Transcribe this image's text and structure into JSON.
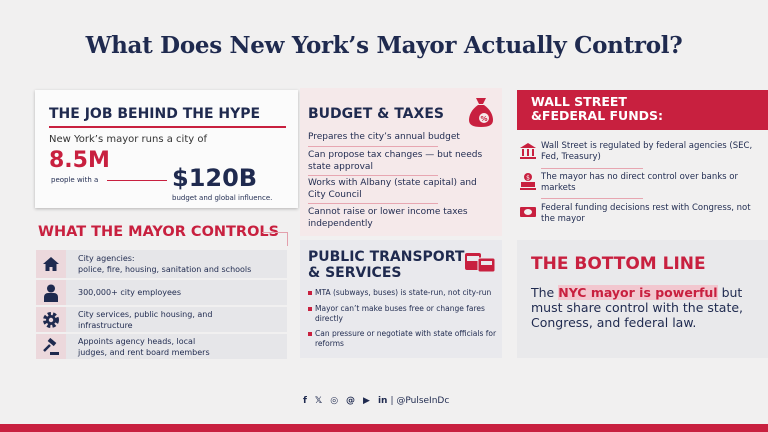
{
  "title": "What Does New York’s Mayor Actually Control?",
  "job": {
    "heading": "THE JOB BEHIND THE HYPE",
    "intro": "New York’s mayor runs a city of",
    "population": "8.5M",
    "population_caption": "people with a",
    "budget": "$120B",
    "budget_caption": "budget and global influence."
  },
  "controls": {
    "heading": "WHAT THE MAYOR CONTROLS",
    "items": [
      {
        "icon": "house-icon",
        "text_line1": "City agencies:",
        "text_line2": "police, fire, housing, sanitation and schools"
      },
      {
        "icon": "employee-icon",
        "text_line1": "300,000+ city employees",
        "text_line2": ""
      },
      {
        "icon": "gear-icon",
        "text_line1": "City services, public housing, and",
        "text_line2": "infrastructure"
      },
      {
        "icon": "gavel-icon",
        "text_line1": "Appoints agency heads, local",
        "text_line2": "judges, and rent board members"
      }
    ]
  },
  "budget": {
    "heading": "BUDGET & TAXES",
    "icon": "money-bag-percent-icon",
    "items": [
      "Prepares the city’s annual budget",
      "Can propose tax changes — but needs state approval",
      "Works with Albany (state capital) and City Council",
      "Cannot raise or lower income taxes independently"
    ]
  },
  "transport": {
    "heading_line1": "PUBLIC TRANSPORT",
    "heading_line2": "& SERVICES",
    "icon": "bus-icon",
    "items": [
      "MTA (subways, buses) is state-run, not city-run",
      "Mayor can’t make buses free or change fares directly",
      "Can pressure or negotiate with state officials for reforms"
    ]
  },
  "wallstreet": {
    "heading_line1": "WALL STREET",
    "heading_line2": "&FEDERAL FUNDS:",
    "items": [
      {
        "icon": "bank-icon",
        "text": "Wall Street is regulated by federal agencies (SEC, Fed, Treasury)"
      },
      {
        "icon": "bank-dollar-icon",
        "text": "The mayor has no direct control over banks or markets"
      },
      {
        "icon": "cash-icon",
        "text": "Federal funding decisions rest with Congress, not the mayor"
      }
    ]
  },
  "bottom": {
    "heading": "THE BOTTOM LINE",
    "pre": "The ",
    "highlight": "NYC mayor is powerful",
    "post": " but must share control with the state, Congress, and federal law."
  },
  "footer": {
    "icons": [
      "facebook-icon",
      "x-icon",
      "instagram-icon",
      "threads-icon",
      "youtube-icon",
      "linkedin-icon"
    ],
    "handle": "| @PulseInDc"
  },
  "colors": {
    "navy": "#1f2a4f",
    "red": "#c8203f",
    "background": "#f1f0f0"
  }
}
